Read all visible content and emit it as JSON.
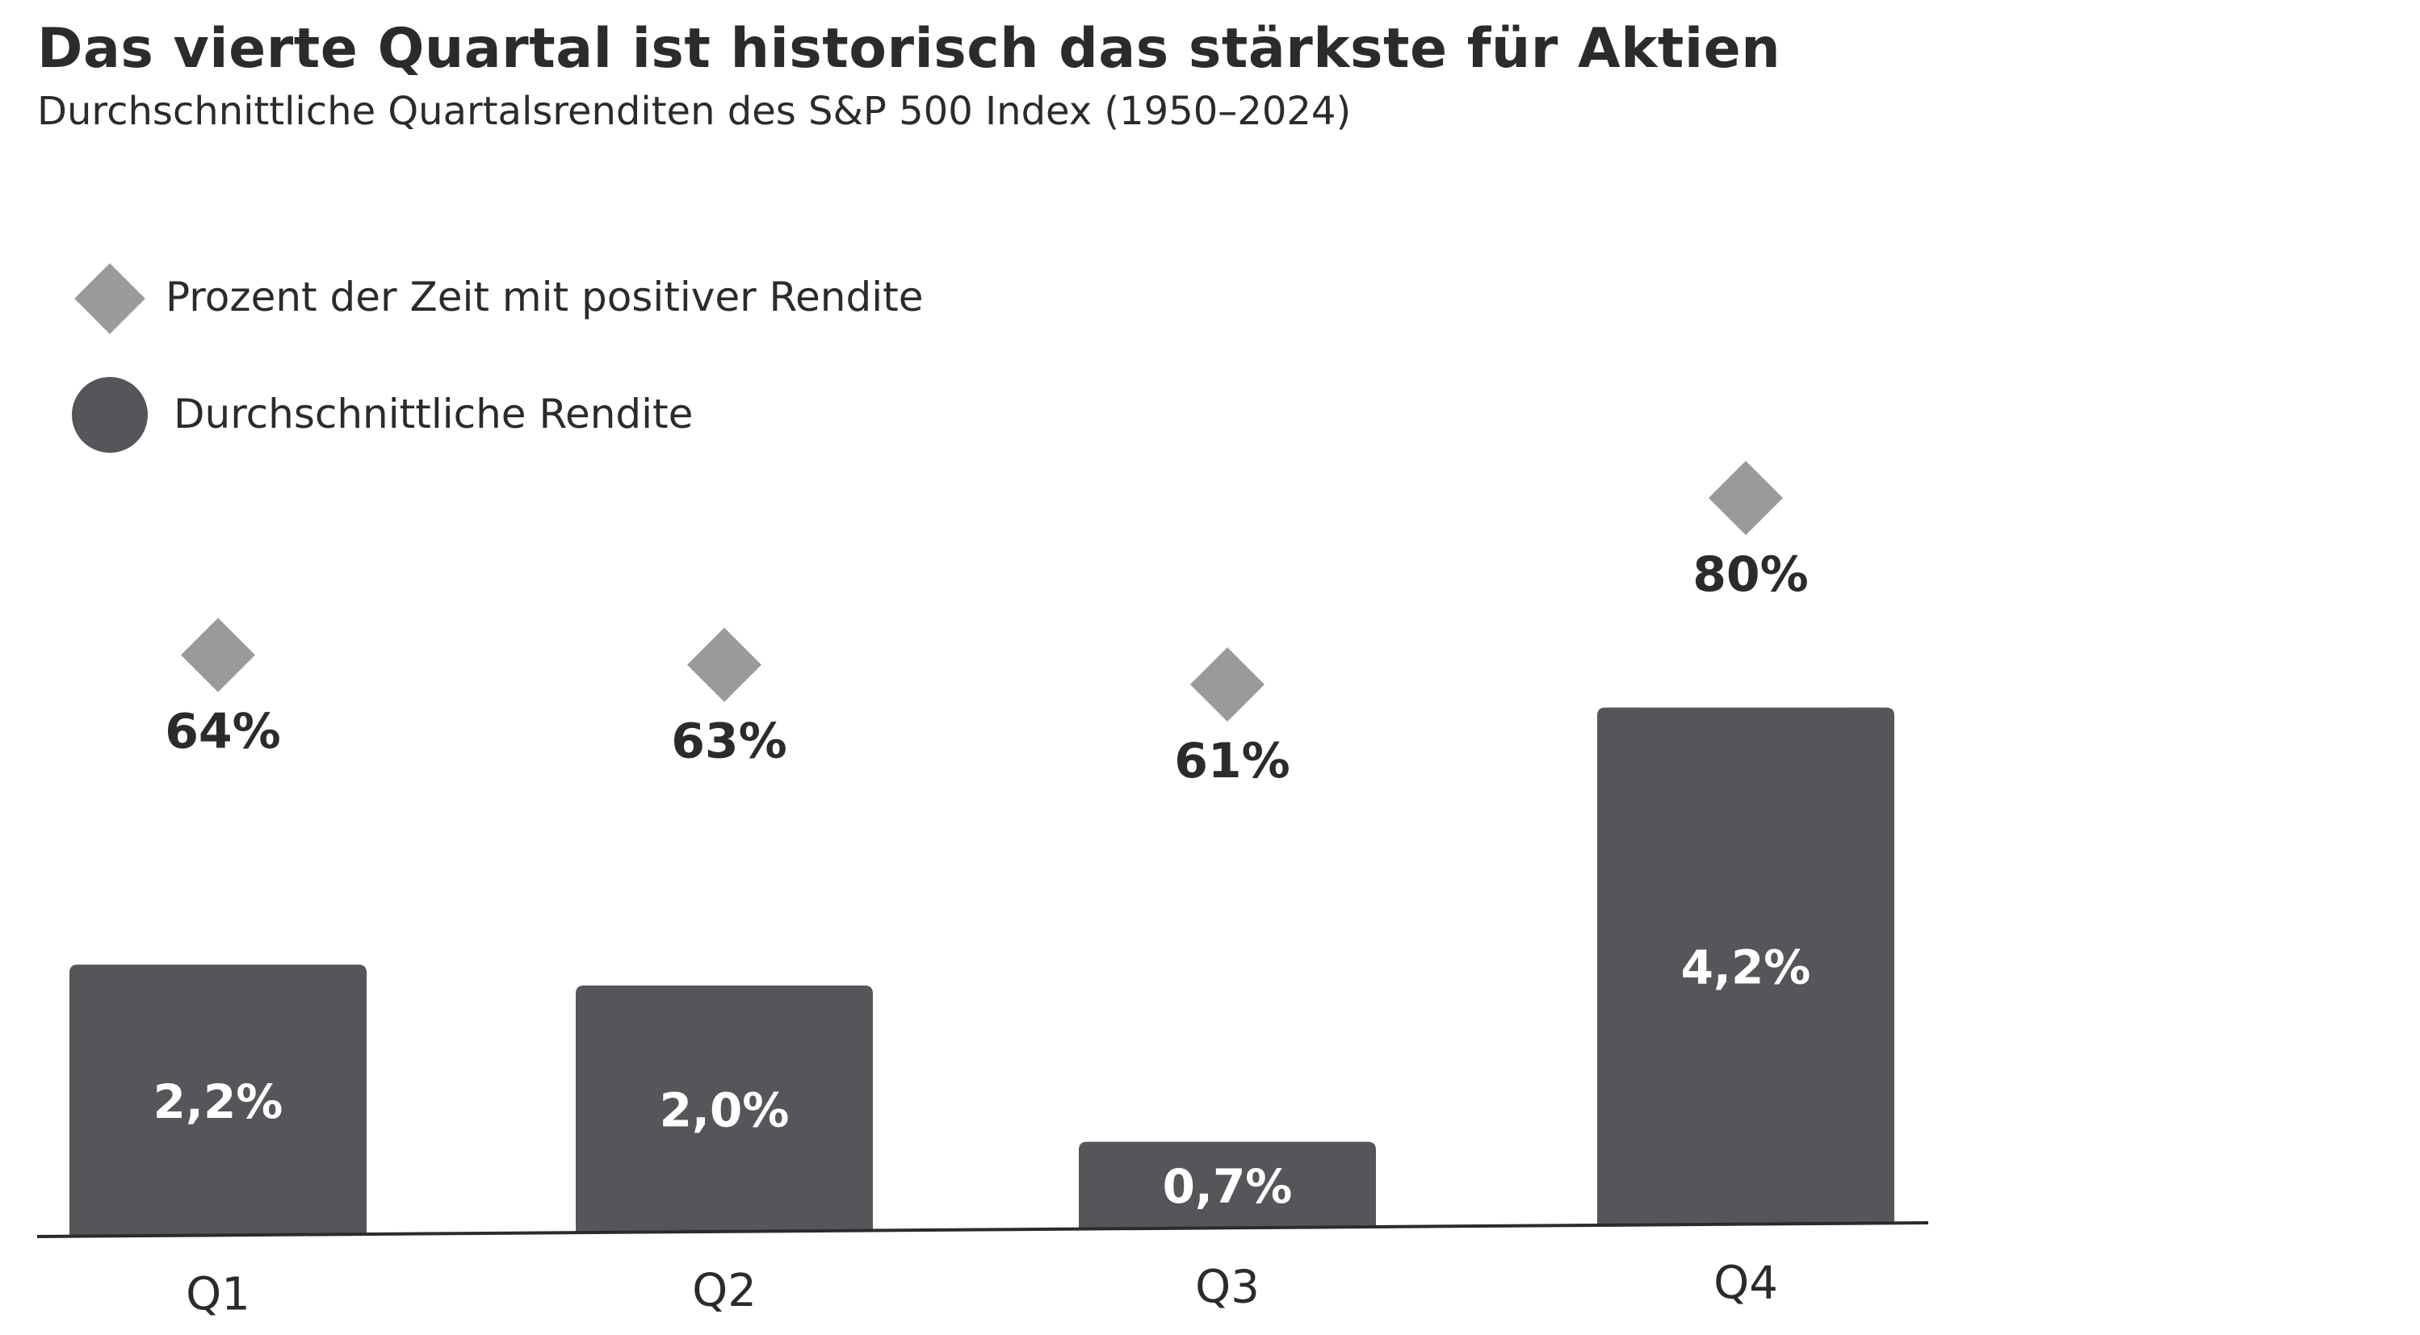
{
  "chart_data": {
    "type": "bar",
    "title": "Das vierte Quartal ist historisch das stärkste für Aktien",
    "subtitle": "Durchschnittliche Quartalsrenditen des S&P 500 Index (1950–2024)",
    "categories": [
      "Q1",
      "Q2",
      "Q3",
      "Q4"
    ],
    "series": [
      {
        "name": "Durchschnittliche Rendite",
        "kind": "bar",
        "values": [
          2.2,
          2.0,
          0.7,
          4.2
        ],
        "labels": [
          "2,2%",
          "2,0%",
          "0,7%",
          "4,2%"
        ],
        "color": "#55565a"
      },
      {
        "name": "Prozent der Zeit mit positiver Rendite",
        "kind": "marker",
        "values": [
          64,
          63,
          61,
          80
        ],
        "labels": [
          "64%",
          "63%",
          "61%",
          "80%"
        ],
        "color": "#9a9a9a"
      }
    ],
    "legend": [
      {
        "label": "Prozent der Zeit mit positiver Rendite",
        "marker": "diamond",
        "color": "#9a9a9a"
      },
      {
        "label": "Durchschnittliche Rendite",
        "marker": "circle",
        "color": "#55565a"
      }
    ],
    "legend_position": "top-left",
    "bar_ylim": [
      0,
      4.2
    ],
    "marker_ylim": [
      61,
      80
    ],
    "grid": false,
    "xlabel": "",
    "ylabel": ""
  }
}
